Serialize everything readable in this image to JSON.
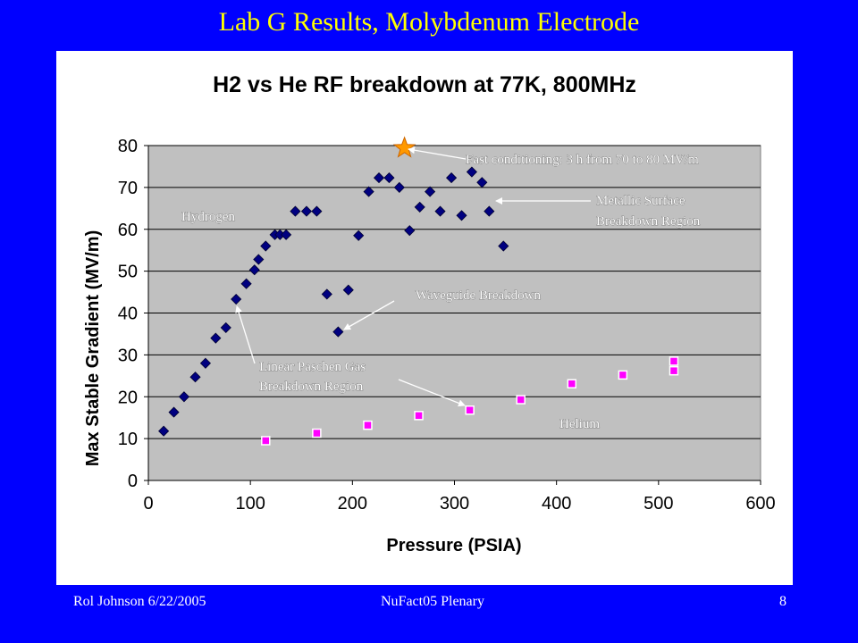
{
  "slide": {
    "title": "Lab G Results, Molybdenum Electrode",
    "footer_left": "Rol Johnson 6/22/2005",
    "footer_center": "NuFact05 Plenary",
    "footer_right": "8"
  },
  "colors": {
    "background": "#0000ff",
    "title": "#ffff00",
    "plot_area": "#c0c0c0",
    "hydrogen": "#000080",
    "helium": "#ff00ff",
    "star": "#ff9900"
  },
  "chart_data": {
    "type": "scatter",
    "title": "H2 vs He RF breakdown at 77K, 800MHz",
    "xlabel": "Pressure (PSIA)",
    "ylabel": "Max Stable Gradient (MV/m)",
    "xlim": [
      0,
      600
    ],
    "ylim": [
      0,
      80
    ],
    "xticks": [
      0,
      100,
      200,
      300,
      400,
      500,
      600
    ],
    "yticks": [
      0,
      10,
      20,
      30,
      40,
      50,
      60,
      70,
      80
    ],
    "grid": "horizontal",
    "series": [
      {
        "name": "Hydrogen",
        "marker": "diamond",
        "color": "#000080",
        "points": [
          [
            15,
            11.8
          ],
          [
            25,
            16.3
          ],
          [
            35,
            20
          ],
          [
            46,
            24.7
          ],
          [
            56,
            28
          ],
          [
            66,
            34
          ],
          [
            76,
            36.5
          ],
          [
            86,
            43.3
          ],
          [
            96,
            47
          ],
          [
            104,
            50.3
          ],
          [
            108,
            52.8
          ],
          [
            115,
            56
          ],
          [
            124,
            58.7
          ],
          [
            129,
            58.7
          ],
          [
            135,
            58.7
          ],
          [
            144,
            64.3
          ],
          [
            155,
            64.3
          ],
          [
            165,
            64.3
          ],
          [
            175,
            44.5
          ],
          [
            186,
            35.5
          ],
          [
            196,
            45.5
          ],
          [
            206,
            58.5
          ],
          [
            216,
            69
          ],
          [
            226,
            72.3
          ],
          [
            236,
            72.3
          ],
          [
            246,
            70
          ],
          [
            256,
            59.7
          ],
          [
            266,
            65.3
          ],
          [
            276,
            69
          ],
          [
            286,
            64.3
          ],
          [
            297,
            72.3
          ],
          [
            307,
            63.3
          ],
          [
            317,
            73.7
          ],
          [
            327,
            71.2
          ],
          [
            334,
            64.3
          ],
          [
            348,
            56
          ]
        ]
      },
      {
        "name": "Helium",
        "marker": "square",
        "color": "#ff00ff",
        "points": [
          [
            115,
            9.5
          ],
          [
            165,
            11.3
          ],
          [
            215,
            13.2
          ],
          [
            265,
            15.5
          ],
          [
            315,
            16.8
          ],
          [
            365,
            19.3
          ],
          [
            415,
            23.1
          ],
          [
            465,
            25.2
          ],
          [
            515,
            26.2
          ],
          [
            515,
            28.5
          ]
        ]
      }
    ],
    "highlight": {
      "marker": "star",
      "color": "#ff9900",
      "point": [
        251,
        79.4
      ]
    },
    "annotations": {
      "hydrogen_label": "Hydrogen",
      "helium_label": "Helium",
      "fast_conditioning": "Fast conditioning: 3 h from 70 to 80 MV/m",
      "metallic_line1": "Metallic Surface",
      "metallic_line2": "Breakdown Region",
      "waveguide": "Waveguide Breakdown",
      "paschen_line1": "Linear Paschen Gas",
      "paschen_line2": "Breakdown Region"
    }
  }
}
